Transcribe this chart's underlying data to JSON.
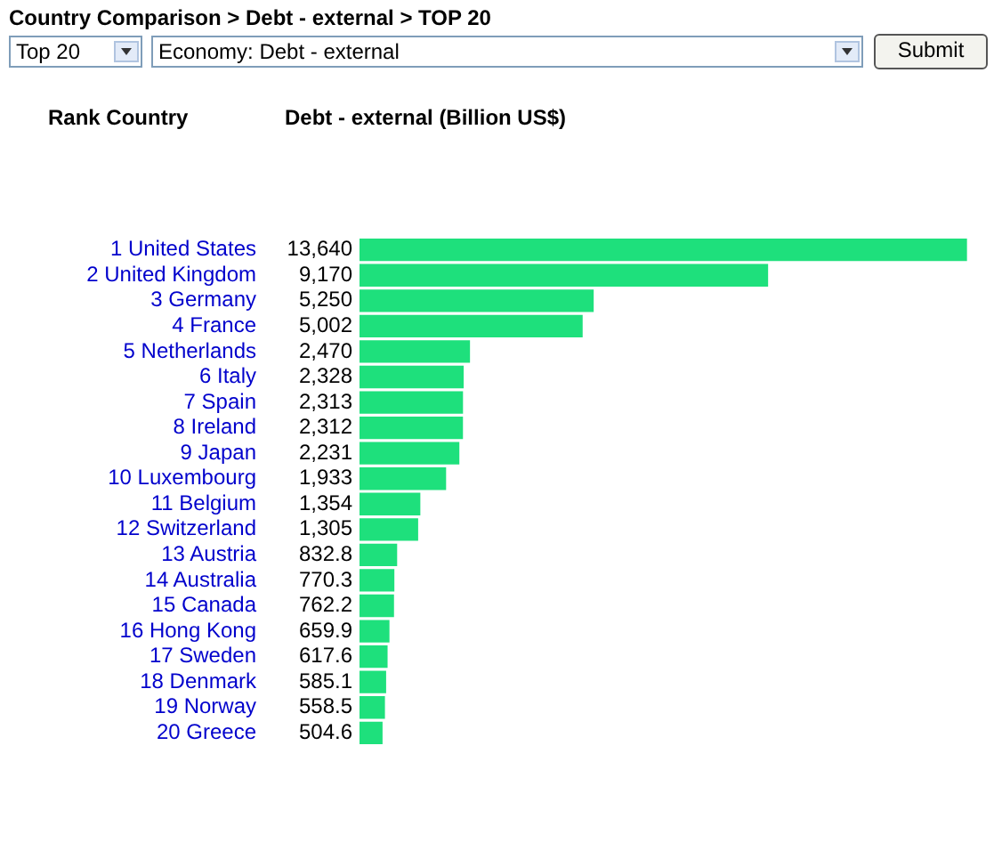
{
  "chart_data": {
    "type": "bar",
    "orientation": "horizontal",
    "title": "Country Comparison > Debt - external > TOP 20",
    "ylabel": "Rank Country",
    "xlabel": "Debt - external (Billion US$)",
    "annotations": [
      "Top 20",
      "Economy: Debt - external",
      "Submit"
    ],
    "categories": [
      "1 United States",
      "2 United Kingdom",
      "3 Germany",
      "4 France",
      "5 Netherlands",
      "6 Italy",
      "7 Spain",
      "8 Ireland",
      "9 Japan",
      "10 Luxembourg",
      "11 Belgium",
      "12 Switzerland",
      "13 Austria",
      "14 Australia",
      "15 Canada",
      "16 Hong Kong",
      "17 Sweden",
      "18 Denmark",
      "19 Norway",
      "20 Greece"
    ],
    "values": [
      13640,
      9170,
      5250,
      5002,
      2470,
      2328,
      2313,
      2312,
      2231,
      1933,
      1354,
      1305,
      832.8,
      770.3,
      762.2,
      659.9,
      617.6,
      585.1,
      558.5,
      504.6
    ],
    "value_labels": [
      "13,640",
      "9,170",
      "5,250",
      "5,002",
      "2,470",
      "2,328",
      "2,313",
      "2,312",
      "2,231",
      "1,933",
      "1,354",
      "1,305",
      "832.8",
      "770.3",
      "762.2",
      "659.9",
      "617.6",
      "585.1",
      "558.5",
      "504.6"
    ],
    "color": "#1ee07c",
    "legend": false
  }
}
